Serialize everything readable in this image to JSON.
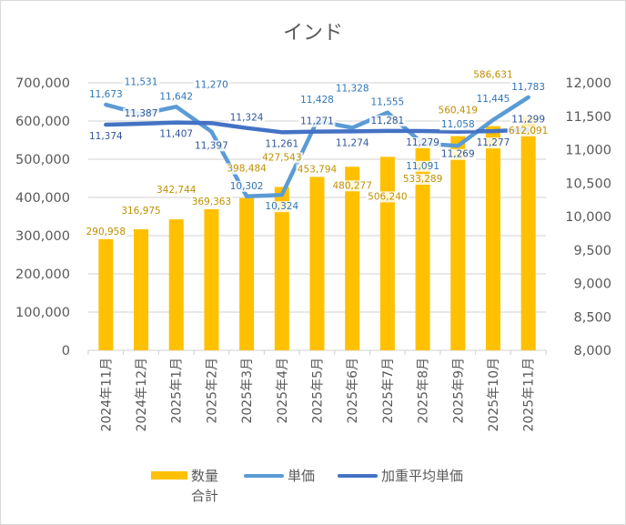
{
  "chart_data": {
    "type": "bar",
    "title": "インド",
    "categories": [
      "2024年11月",
      "2024年12月",
      "2025年1月",
      "2025年2月",
      "2025年3月",
      "2025年4月",
      "2025年5月",
      "2025年6月",
      "2025年7月",
      "2025年8月",
      "2025年9月",
      "2025年10月",
      "2025年11月"
    ],
    "series": [
      {
        "name": "数量\n合計",
        "name_lines": [
          "数量",
          "合計"
        ],
        "type": "bar",
        "axis": "left",
        "color": "#ffc000",
        "label_color": "#bf9000",
        "values": [
          290958,
          316975,
          342744,
          369363,
          398484,
          427543,
          453794,
          480277,
          506240,
          533289,
          560419,
          586631,
          612091
        ],
        "labels": [
          "290,958",
          "316,975",
          "342,744",
          "369,363",
          "398,484",
          "427,543",
          "453,794",
          "480,277",
          "506,240",
          "533,289",
          "560,419",
          "586,631",
          "612,091"
        ]
      },
      {
        "name": "単価",
        "type": "line",
        "axis": "right",
        "color": "#5b9bd5",
        "label_color": "#2e75b6",
        "values": [
          11673,
          11531,
          11642,
          11270,
          10302,
          10324,
          11428,
          11328,
          11555,
          11091,
          11058,
          11445,
          11783
        ],
        "labels": [
          "11,673",
          "11,531",
          "11,642",
          "11,270",
          "10,302",
          "10,324",
          "11,428",
          "11,328",
          "11,555",
          "11,091",
          "11,058",
          "11,445",
          "11,783"
        ]
      },
      {
        "name": "加重平均単価",
        "type": "line",
        "axis": "right",
        "color": "#4472c4",
        "label_color": "#2f5597",
        "values": [
          11374,
          11387,
          11407,
          11397,
          11324,
          11261,
          11271,
          11274,
          11281,
          11279,
          11269,
          11277,
          11299
        ],
        "labels": [
          "11,374",
          "11,387",
          "11,407",
          "11,397",
          "11,324",
          "11,261",
          "11,271",
          "11,274",
          "11,281",
          "11,279",
          "11,269",
          "11,277",
          "11,299"
        ]
      }
    ],
    "y_left": {
      "range": [
        0,
        700000
      ],
      "ticks": [
        0,
        100000,
        200000,
        300000,
        400000,
        500000,
        600000,
        700000
      ],
      "tick_labels": [
        "0",
        "100,000",
        "200,000",
        "300,000",
        "400,000",
        "500,000",
        "600,000",
        "700,000"
      ]
    },
    "y_right": {
      "range": [
        8000,
        12000
      ],
      "ticks": [
        8000,
        8500,
        9000,
        9500,
        10000,
        10500,
        11000,
        11500,
        12000
      ],
      "tick_labels": [
        "8,000",
        "8,500",
        "9,000",
        "9,500",
        "10,000",
        "10,500",
        "11,000",
        "11,500",
        "12,000"
      ]
    },
    "xlabel": "",
    "ylabel": "",
    "grid": true,
    "legend_position": "bottom"
  }
}
